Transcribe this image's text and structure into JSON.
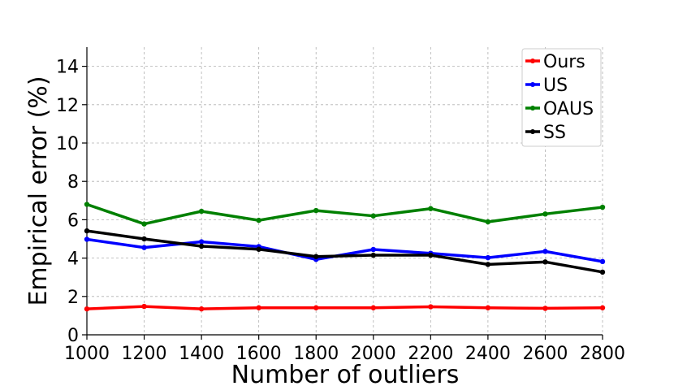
{
  "chart_data": {
    "type": "line",
    "title": "",
    "xlabel": "Number of outliers",
    "ylabel": "Empirical error (%)",
    "x": [
      1000,
      1200,
      1400,
      1600,
      1800,
      2000,
      2200,
      2400,
      2600,
      2800
    ],
    "xticks": [
      "1000",
      "1200",
      "1400",
      "1600",
      "1800",
      "2000",
      "2200",
      "2400",
      "2600",
      "2800"
    ],
    "yticks": [
      "0",
      "2",
      "4",
      "6",
      "8",
      "10",
      "12",
      "14"
    ],
    "xlim": [
      1000,
      2800
    ],
    "ylim": [
      0,
      15
    ],
    "grid": true,
    "legend_position": "top-right",
    "series": [
      {
        "name": "Ours",
        "color": "#ff0000",
        "values": [
          1.35,
          1.48,
          1.35,
          1.41,
          1.41,
          1.41,
          1.46,
          1.41,
          1.38,
          1.41
        ]
      },
      {
        "name": "US",
        "color": "#0000ff",
        "values": [
          4.98,
          4.55,
          4.85,
          4.6,
          3.93,
          4.45,
          4.25,
          4.02,
          4.35,
          3.82
        ]
      },
      {
        "name": "OAUS",
        "color": "#008000",
        "values": [
          6.8,
          5.78,
          6.44,
          5.97,
          6.48,
          6.2,
          6.58,
          5.89,
          6.3,
          6.65
        ]
      },
      {
        "name": "SS",
        "color": "#000000",
        "values": [
          5.42,
          5.0,
          4.62,
          4.46,
          4.08,
          4.15,
          4.15,
          3.67,
          3.8,
          3.27
        ]
      }
    ]
  }
}
